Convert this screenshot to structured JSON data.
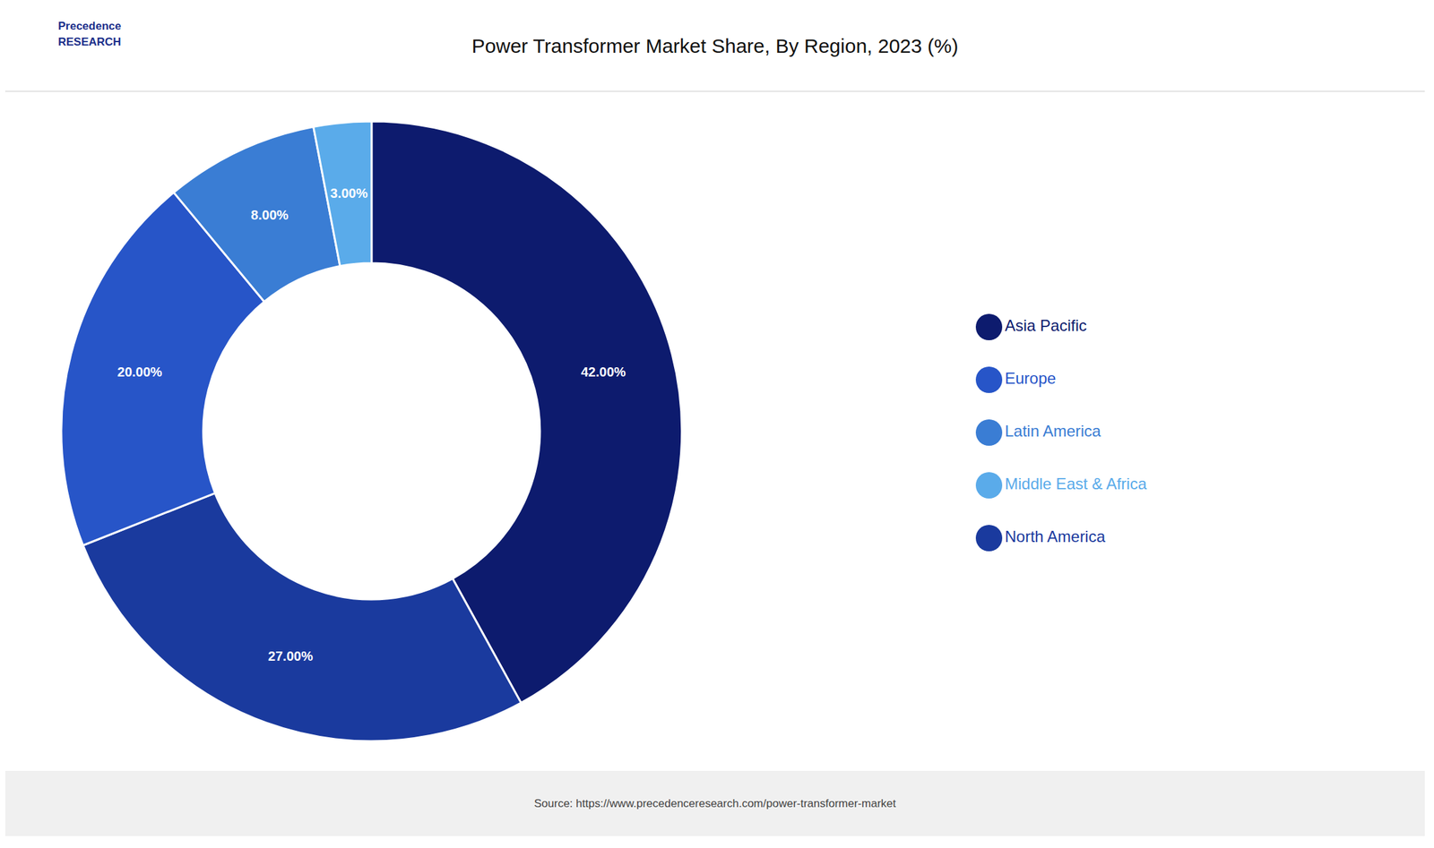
{
  "chart_data": {
    "type": "pie",
    "title": "Power Transformer Market Share, By Region, 2023 (%)",
    "categories": [
      "Asia Pacific",
      "North America",
      "Europe",
      "Latin America",
      "Middle East & Africa"
    ],
    "values": [
      42.0,
      27.0,
      20.0,
      8.0,
      3.0
    ],
    "value_labels": [
      "42.00%",
      "27.00%",
      "20.00%",
      "8.00%",
      "3.00%"
    ],
    "colors": [
      "#0d1b6e",
      "#1a3a9e",
      "#2755c8",
      "#3a7dd4",
      "#5aabea"
    ],
    "data_labels": true,
    "legend": "right",
    "annotations": [
      "Precedence\nRESEARCH",
      "Source: https://www.precedenceresearch.com/power-transformer-market"
    ]
  }
}
